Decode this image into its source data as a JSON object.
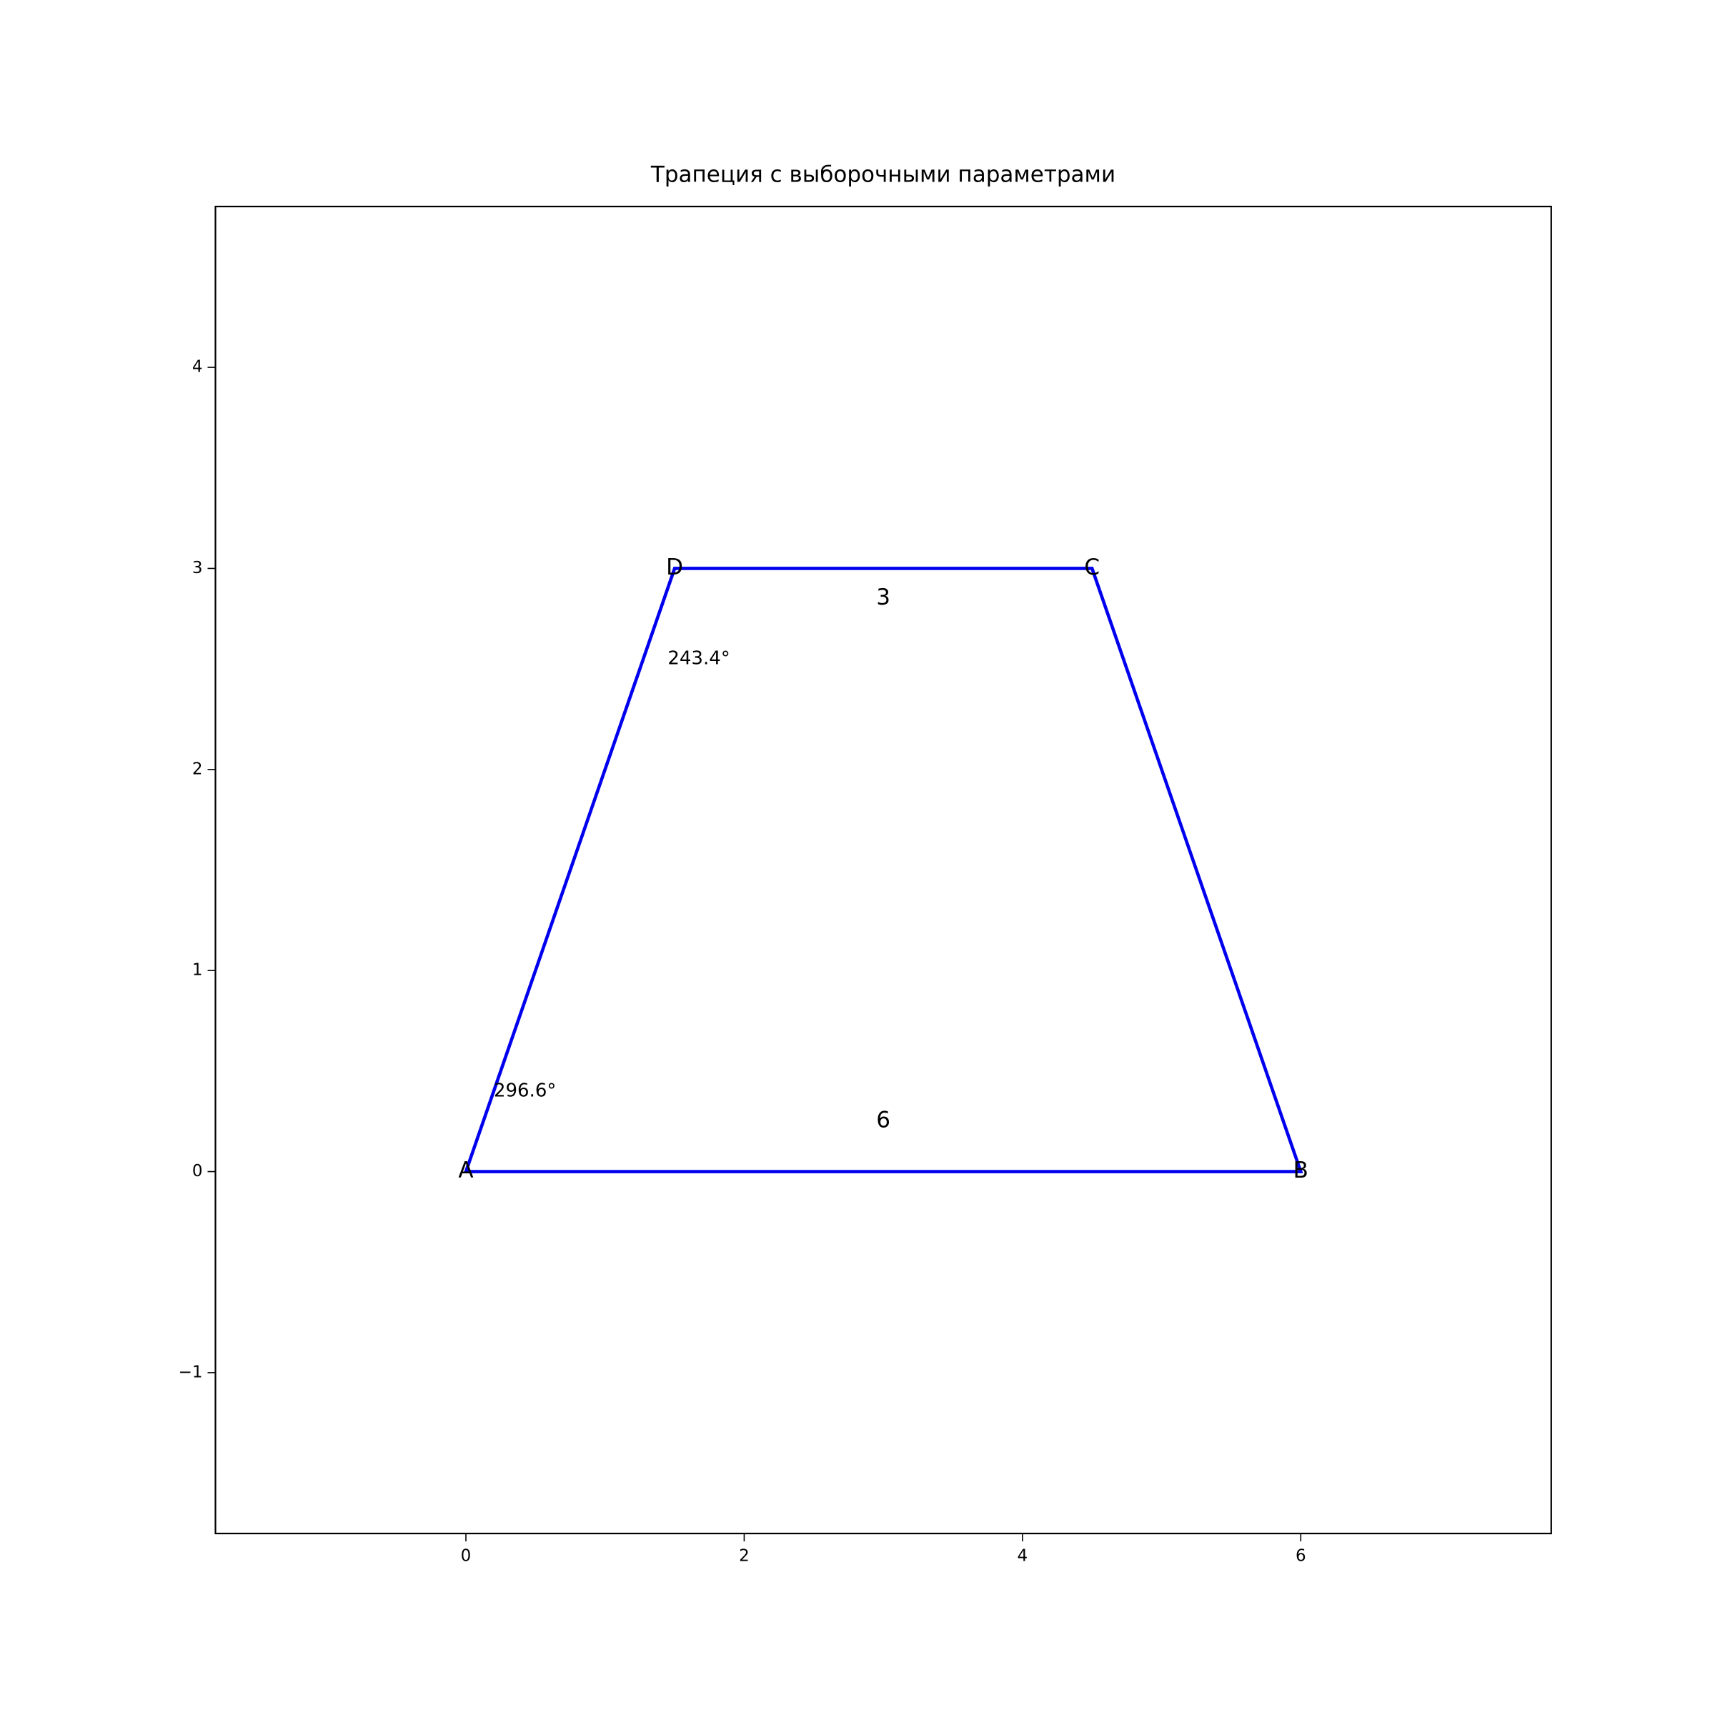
{
  "chart_data": {
    "type": "polygon",
    "title": "Трапеция с выборочными параметрами",
    "x": [
      0,
      6,
      4.5,
      1.5
    ],
    "values": [
      0,
      0,
      3,
      3
    ],
    "point_labels": [
      "A",
      "B",
      "C",
      "D"
    ],
    "closed": true,
    "color": "#0000ee",
    "annotations": [
      {
        "text": "6",
        "x": 3,
        "y": 0.25
      },
      {
        "text": "3",
        "x": 3,
        "y": 2.85
      },
      {
        "text": "296.6°",
        "x": 0.2,
        "y": 0.4
      },
      {
        "text": "243.4°",
        "x": 1.45,
        "y": 2.55
      }
    ],
    "xlim": [
      -1.8,
      7.8
    ],
    "ylim": [
      -1.8,
      4.8
    ],
    "xticks": [
      0,
      2,
      4,
      6
    ],
    "yticks": [
      {
        "value": -1,
        "label": "−1"
      },
      0,
      1,
      2,
      3,
      4
    ],
    "grid": false
  }
}
